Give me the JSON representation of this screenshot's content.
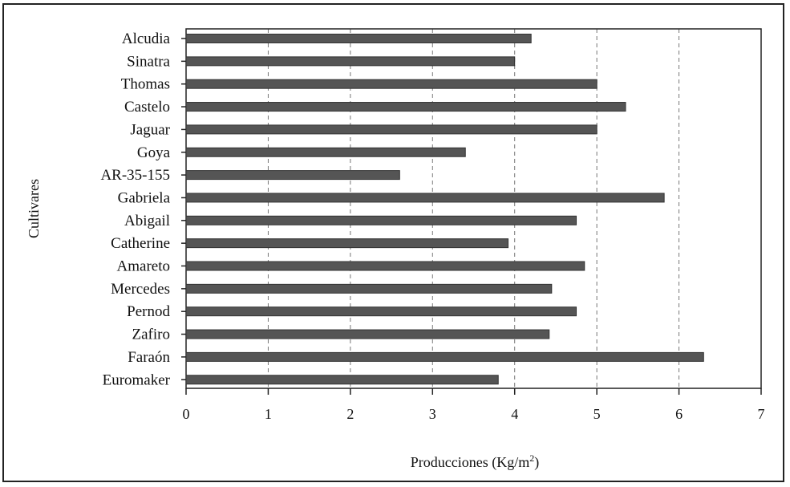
{
  "chart_data": {
    "type": "bar",
    "orientation": "horizontal",
    "categories": [
      "Alcudia",
      "Sinatra",
      "Thomas",
      "Castelo",
      "Jaguar",
      "Goya",
      "AR-35-155",
      "Gabriela",
      "Abigail",
      "Catherine",
      "Amareto",
      "Mercedes",
      "Pernod",
      "Zafiro",
      "Faraón",
      "Euromaker"
    ],
    "values": [
      4.2,
      4.0,
      5.0,
      5.35,
      5.0,
      3.4,
      2.6,
      5.82,
      4.75,
      3.92,
      4.85,
      4.45,
      4.75,
      4.42,
      6.3,
      3.8
    ],
    "xlabel": "Producciones (Kg/m",
    "xlabel_sup": "2",
    "xlabel_end": ")",
    "ylabel": "Cultivares",
    "xlim": [
      0,
      7
    ],
    "xticks": [
      0,
      1,
      2,
      3,
      4,
      5,
      6,
      7
    ],
    "grid": "vertical dashed",
    "bar_color": "#555555"
  }
}
